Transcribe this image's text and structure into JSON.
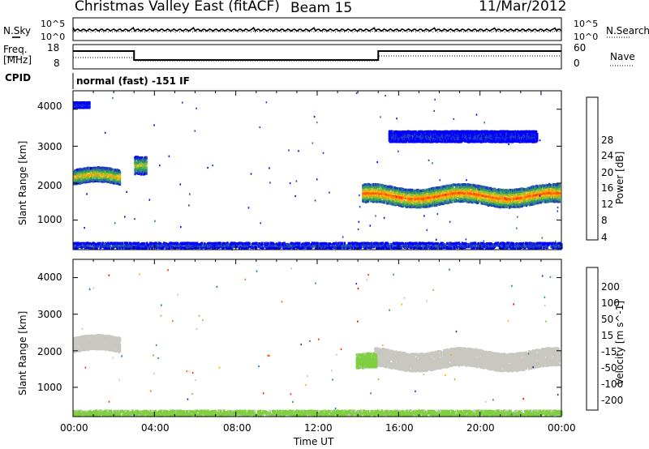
{
  "header": {
    "station": "Christmas Valley East (fitACF)",
    "beam": "Beam 15",
    "date": "11/Mar/2012"
  },
  "noise_panel": {
    "left_label": "N.Sky",
    "left_ticks": [
      "10^5",
      "10^0"
    ],
    "right_label": "N.Search",
    "right_ticks": [
      "10^5",
      "10^0"
    ]
  },
  "freq_panel": {
    "left_label_1": "Freq.",
    "left_label_2": "[MHz]",
    "left_ticks": [
      "18",
      "8"
    ],
    "right_label": "Nave",
    "right_ticks": [
      "60",
      "0"
    ]
  },
  "cpid": {
    "label": "CPID",
    "text": "normal (fast) -151 IF"
  },
  "time_axis": {
    "label": "Time UT",
    "ticks": [
      "00:00",
      "04:00",
      "08:00",
      "12:00",
      "16:00",
      "20:00",
      "00:00"
    ]
  },
  "colors": {
    "power_scale": [
      "#0000ff",
      "#1f3fc0",
      "#2c7d8a",
      "#3aa05a",
      "#7ec23a",
      "#f0c020",
      "#ff9a00",
      "#ff5a00",
      "#ff1a00"
    ],
    "velocity_scale": [
      "#1a2fb0",
      "#1f6fb0",
      "#2a9a3a",
      "#7ed040",
      "#c8c8c0",
      "#ffb000",
      "#ff7000",
      "#ff3000",
      "#ff0000"
    ]
  },
  "chart_data": [
    {
      "type": "heatmap",
      "name": "power",
      "xlabel": "Time UT",
      "ylabel": "Slant Range [km]",
      "xlim": [
        0,
        24
      ],
      "ylim": [
        200,
        4500
      ],
      "yticks": [
        "1000",
        "2000",
        "3000",
        "4000"
      ],
      "colorbar": {
        "label": "Power [dB]",
        "ticks": [
          "4",
          "8",
          "12",
          "16",
          "20",
          "24",
          "28"
        ],
        "range": [
          0,
          30
        ]
      },
      "features": [
        {
          "type": "band",
          "t_start": 14.2,
          "t_end": 23.9,
          "center_km": 1700,
          "width_km": 500,
          "value_db": 25
        },
        {
          "type": "band",
          "t_start": 0.0,
          "t_end": 2.3,
          "center_km": 2200,
          "width_km": 400,
          "value_db": 20
        },
        {
          "type": "band",
          "t_start": 3.0,
          "t_end": 3.6,
          "center_km": 2600,
          "width_km": 500,
          "value_db": 16
        },
        {
          "type": "patch",
          "t_start": 0.0,
          "t_end": 0.8,
          "center_km": 4150,
          "width_km": 150,
          "value_db": 4
        },
        {
          "type": "patch",
          "t_start": 15.5,
          "t_end": 22.8,
          "center_km": 3300,
          "width_km": 300,
          "value_db": 4
        },
        {
          "type": "ground",
          "t_start": 0.0,
          "t_end": 24.0,
          "center_km": 350,
          "width_km": 150,
          "value_db": 6
        }
      ]
    },
    {
      "type": "heatmap",
      "name": "velocity",
      "xlabel": "Time UT",
      "ylabel": "Slant Range [km]",
      "xlim": [
        0,
        24
      ],
      "ylim": [
        200,
        4500
      ],
      "yticks": [
        "1000",
        "2000",
        "3000",
        "4000"
      ],
      "colorbar": {
        "label": "Velocity [m s^-1]",
        "ticks": [
          "200",
          "100",
          "50",
          "15",
          "-15",
          "-50",
          "-100",
          "-200"
        ],
        "range": [
          -250,
          250
        ]
      },
      "features": [
        {
          "type": "band",
          "t_start": 14.8,
          "t_end": 23.9,
          "center_km": 1800,
          "width_km": 500,
          "value_ms": 0
        },
        {
          "type": "band",
          "t_start": 0.0,
          "t_end": 2.3,
          "center_km": 2200,
          "width_km": 400,
          "value_ms": 0
        },
        {
          "type": "band",
          "t_start": 13.9,
          "t_end": 14.9,
          "center_km": 1700,
          "width_km": 400,
          "value_ms": 40
        },
        {
          "type": "ground",
          "t_start": 0.0,
          "t_end": 24.0,
          "center_km": 330,
          "width_km": 150,
          "value_ms": 40
        }
      ]
    }
  ]
}
